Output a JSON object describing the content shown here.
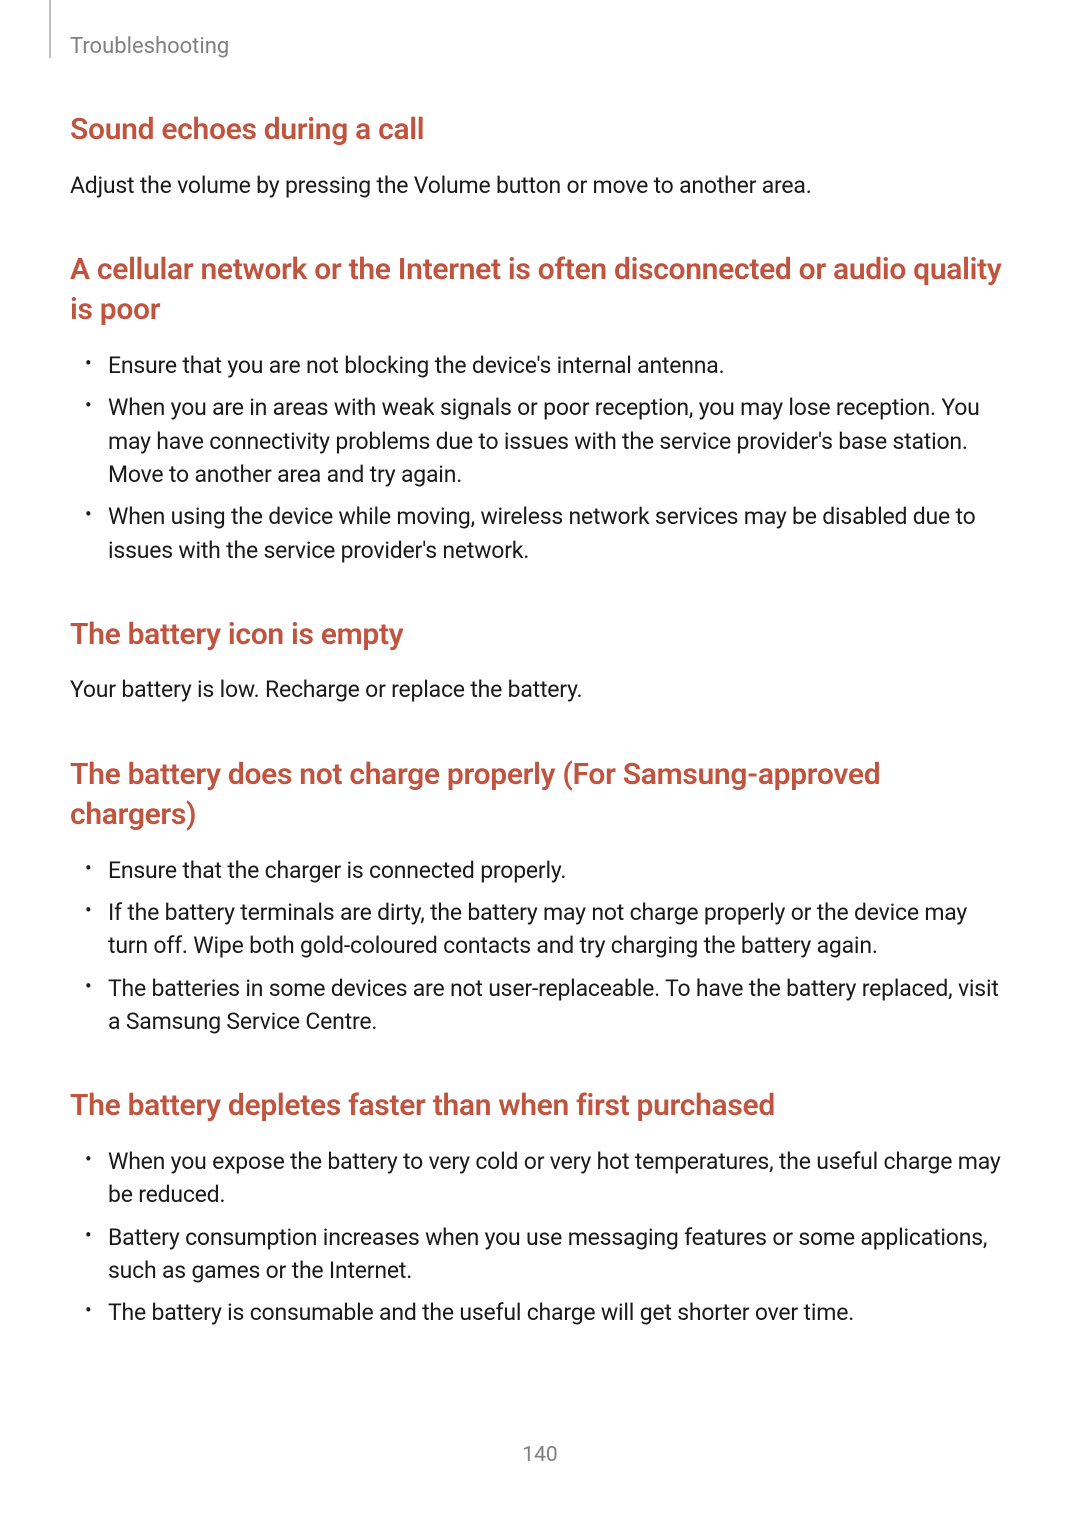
{
  "header": {
    "section": "Troubleshooting"
  },
  "sections": {
    "s1": {
      "heading": "Sound echoes during a call",
      "body": "Adjust the volume by pressing the Volume button or move to another area."
    },
    "s2": {
      "heading": "A cellular network or the Internet is often disconnected or audio quality is poor",
      "items": {
        "i1": "Ensure that you are not blocking the device's internal antenna.",
        "i2": "When you are in areas with weak signals or poor reception, you may lose reception. You may have connectivity problems due to issues with the service provider's base station. Move to another area and try again.",
        "i3": "When using the device while moving, wireless network services may be disabled due to issues with the service provider's network."
      }
    },
    "s3": {
      "heading": "The battery icon is empty",
      "body": "Your battery is low. Recharge or replace the battery."
    },
    "s4": {
      "heading": "The battery does not charge properly (For Samsung-approved chargers)",
      "items": {
        "i1": "Ensure that the charger is connected properly.",
        "i2": "If the battery terminals are dirty, the battery may not charge properly or the device may turn off. Wipe both gold-coloured contacts and try charging the battery again.",
        "i3": "The batteries in some devices are not user-replaceable. To have the battery replaced, visit a Samsung Service Centre."
      }
    },
    "s5": {
      "heading": "The battery depletes faster than when first purchased",
      "items": {
        "i1": "When you expose the battery to very cold or very hot temperatures, the useful charge may be reduced.",
        "i2": "Battery consumption increases when you use messaging features or some applications, such as games or the Internet.",
        "i3": "The battery is consumable and the useful charge will get shorter over time."
      }
    }
  },
  "pageNumber": "140",
  "styling": {
    "heading_color": "#c0543f",
    "body_color": "#1a1a1a",
    "muted_color": "#808080",
    "background": "#ffffff",
    "heading_fontsize": 30,
    "body_fontsize": 23,
    "header_fontsize": 22,
    "page_number_fontsize": 21
  }
}
